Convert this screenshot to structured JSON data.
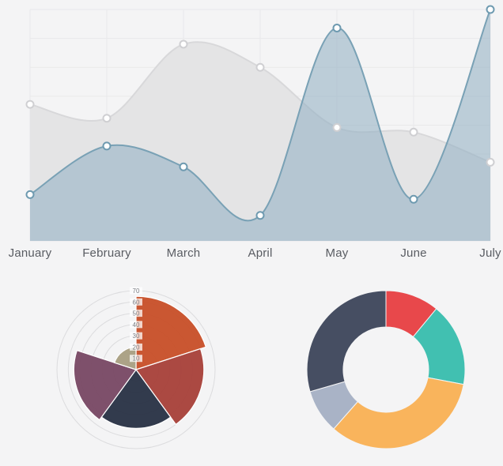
{
  "page": {
    "background": "#f4f4f5"
  },
  "chart_data": [
    {
      "type": "area",
      "title": "",
      "categories": [
        "January",
        "February",
        "March",
        "April",
        "May",
        "June",
        "July"
      ],
      "ylim": [
        0,
        100
      ],
      "grid": true,
      "legend": "none",
      "axis_label_color": "#595c62",
      "series": [
        {
          "name": "gray-series",
          "values": [
            59,
            53,
            85,
            75,
            49,
            47,
            34
          ],
          "fill": "#e4e4e5",
          "line": "#d8d8da",
          "marker_fill": "#ffffff",
          "marker_stroke": "#cfcfd2"
        },
        {
          "name": "blue-series",
          "values": [
            20,
            41,
            32,
            11,
            92,
            18,
            100
          ],
          "fill": "rgba(150,178,196,0.60)",
          "line": "#79a1b5",
          "marker_fill": "#ffffff",
          "marker_stroke": "#6e9ab0"
        }
      ]
    },
    {
      "type": "polar-area",
      "title": "",
      "scale_ticks": [
        10,
        20,
        30,
        40,
        50,
        60,
        70
      ],
      "scale_max": 70,
      "values": [
        65,
        60,
        52,
        55,
        20
      ],
      "colors": [
        "#c8522b",
        "#a8433c",
        "#2b3547",
        "#7a4a66",
        "#a9a083"
      ],
      "segment_names": [
        "orange",
        "brick-red",
        "dark-navy",
        "plum",
        "olive"
      ],
      "start_angle_deg": -90,
      "grid_color": "#dcdcde",
      "tick_color": "#7a7d83"
    },
    {
      "type": "doughnut",
      "title": "",
      "values": [
        11,
        17,
        33.5,
        9,
        29.5
      ],
      "colors": [
        "#e8484b",
        "#41c0b1",
        "#f9b45c",
        "#a9b3c6",
        "#464e62"
      ],
      "segment_names": [
        "red",
        "teal",
        "amber",
        "light-slate",
        "dark-slate"
      ],
      "inner_radius_ratio": 0.54,
      "start_angle_deg": -90
    }
  ]
}
